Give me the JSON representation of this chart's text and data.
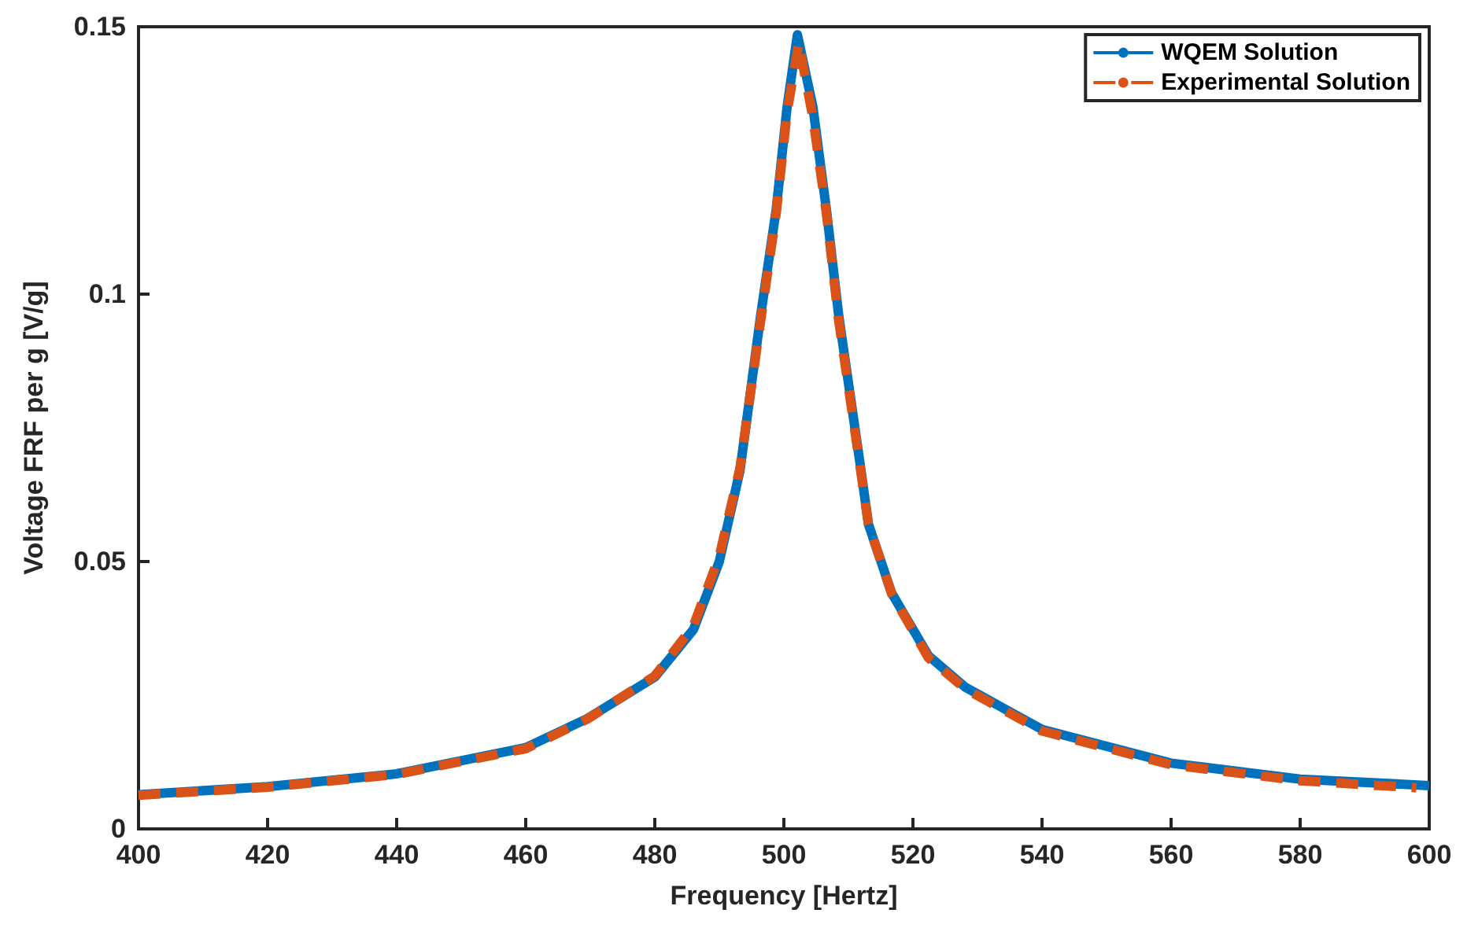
{
  "chart_data": {
    "type": "line",
    "xlabel": "Frequency [Hertz]",
    "ylabel": "Voltage FRF per g [V/g]",
    "xlim": [
      400,
      600
    ],
    "xticks": [
      400,
      420,
      440,
      460,
      480,
      500,
      520,
      540,
      560,
      580,
      600
    ],
    "ylim": [
      0,
      0.15
    ],
    "yticks": [
      0,
      0.05,
      0.1,
      0.15
    ],
    "grid": false,
    "legend": "top right",
    "marker": "none",
    "series": [
      {
        "name": "WQEM Solution",
        "color": "#0072bd",
        "line_style": "solid",
        "x": [
          400,
          420,
          440,
          460,
          469.5,
          480,
          486,
          490,
          493.2,
          496.4,
          498.8,
          500.5,
          502.1,
          504.5,
          506.6,
          508.5,
          511.9,
          513.1,
          516.7,
          522.4,
          528.1,
          540,
          560,
          580,
          600
        ],
        "values": [
          0.0064,
          0.0079,
          0.0103,
          0.0152,
          0.0206,
          0.0284,
          0.0373,
          0.05,
          0.067,
          0.096,
          0.1157,
          0.135,
          0.1485,
          0.135,
          0.1157,
          0.096,
          0.0675,
          0.057,
          0.0441,
          0.0324,
          0.0265,
          0.0186,
          0.0123,
          0.0093,
          0.0081
        ]
      },
      {
        "name": "Experimental Solution",
        "color": "#d95319",
        "line_style": "dashed",
        "x": [
          400,
          420,
          440,
          460,
          469.5,
          480,
          486,
          490,
          493.2,
          496.4,
          498.8,
          500.5,
          502.3,
          504.5,
          506.6,
          508.5,
          511.9,
          513.1,
          516.7,
          522.4,
          528.1,
          540,
          560,
          580,
          598
        ],
        "values": [
          0.0063,
          0.0078,
          0.0102,
          0.015,
          0.0205,
          0.0286,
          0.038,
          0.051,
          0.0675,
          0.095,
          0.115,
          0.134,
          0.147,
          0.133,
          0.115,
          0.095,
          0.067,
          0.057,
          0.044,
          0.032,
          0.0262,
          0.0183,
          0.012,
          0.009,
          0.0077
        ]
      }
    ]
  }
}
